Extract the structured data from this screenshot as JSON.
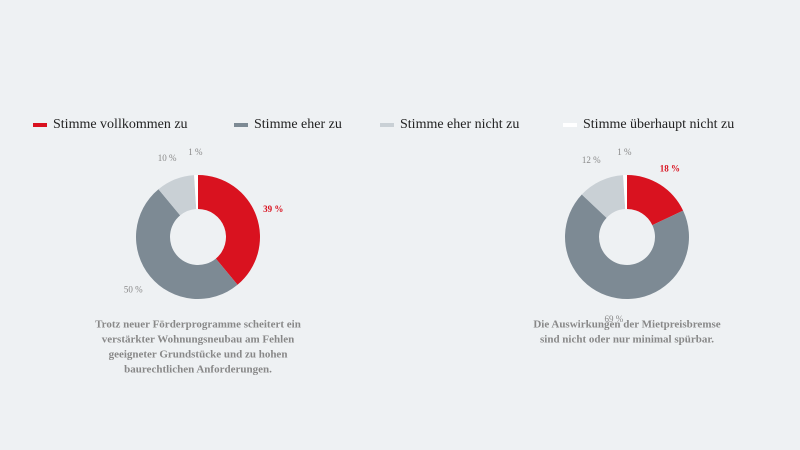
{
  "legend": {
    "categories": [
      "Stimme vollkommen zu",
      "Stimme eher zu",
      "Stimme eher nicht zu",
      "Stimme überhaupt nicht zu"
    ],
    "colors": [
      "#d9121f",
      "#7d8a94",
      "#c9d0d5",
      "#ffffff"
    ]
  },
  "chart_data": [
    {
      "type": "pie",
      "values": [
        39,
        50,
        10,
        1
      ],
      "value_labels": [
        "39 %",
        "50 %",
        "10 %",
        "1 %"
      ],
      "caption": [
        "Trotz neuer Förderprogramme scheitert ein",
        "verstärkter Wohnungsneubau am Fehlen",
        "geeigneter Grundstücke und zu hohen",
        "baurechtlichen Anforderungen."
      ]
    },
    {
      "type": "pie",
      "values": [
        18,
        69,
        12,
        1
      ],
      "value_labels": [
        "18 %",
        "69 %",
        "12 %",
        "1 %"
      ],
      "caption": [
        "Die Auswirkungen der Mietpreisbremse",
        "sind nicht oder nur minimal spürbar."
      ]
    }
  ]
}
